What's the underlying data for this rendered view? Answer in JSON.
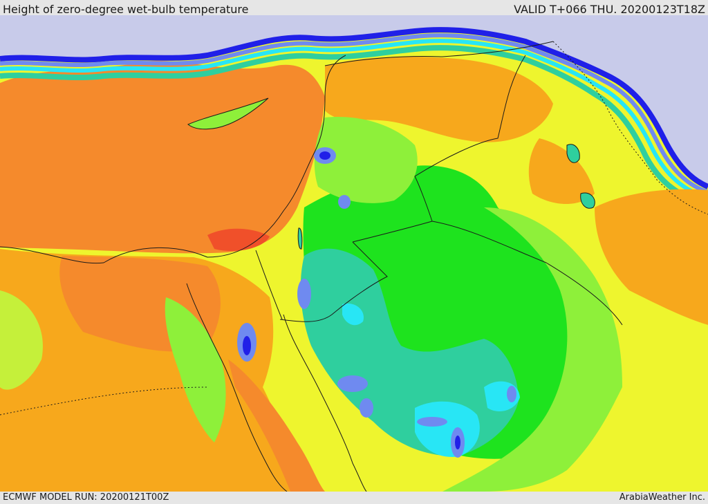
{
  "header": {
    "title": "Height of zero-degree wet-bulb temperature",
    "valid_time": "VALID T+066 THU. 20200123T18Z"
  },
  "footer": {
    "model_run": "ECMWF MODEL RUN: 20200121T00Z",
    "credit": "ArabiaWeather Inc."
  },
  "map": {
    "field_colors": {
      "very_low": "#c8cbea",
      "low_blue": "#2020e8",
      "light_blue": "#6f8af0",
      "cyan": "#28e6f5",
      "teal": "#2fcf9e",
      "green": "#1ee31e",
      "light_green": "#8ef03a",
      "yellow_green": "#c5f03a",
      "yellow": "#eef52e",
      "orange": "#f7a81c",
      "dark_orange": "#f58a2c",
      "red": "#f0502a"
    },
    "border_color": "#1a1a1a"
  }
}
